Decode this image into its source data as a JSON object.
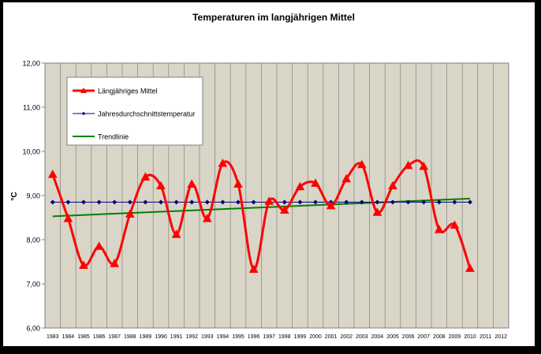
{
  "chart_data": {
    "type": "line",
    "title": "Temperaturen im langjährigen Mittel",
    "xlabel": "",
    "ylabel": "°C",
    "ylim": [
      6.0,
      12.0
    ],
    "xlim": [
      1983,
      2012
    ],
    "y_ticks": [
      "6,00",
      "7,00",
      "8,00",
      "9,00",
      "10,00",
      "11,00",
      "12,00"
    ],
    "x_ticks": [
      "1983",
      "1984",
      "1985",
      "1986",
      "1987",
      "1988",
      "1989",
      "1990",
      "1991",
      "1992",
      "1993",
      "1994",
      "1995",
      "1996",
      "1997",
      "1998",
      "1999",
      "2000",
      "2001",
      "2002",
      "2003",
      "2004",
      "2005",
      "2006",
      "2007",
      "2008",
      "2009",
      "2010",
      "2011",
      "2012"
    ],
    "grid": "vertical",
    "legend_position": "top-left",
    "plot_background": "#d9d5c7",
    "series": [
      {
        "name": "Längjähriges Mittel",
        "color": "#ff0000",
        "marker": "triangle",
        "smooth": true,
        "x": [
          1983,
          1984,
          1985,
          1986,
          1987,
          1988,
          1989,
          1990,
          1991,
          1992,
          1993,
          1994,
          1995,
          1996,
          1997,
          1998,
          1999,
          2000,
          2001,
          2002,
          2003,
          2004,
          2005,
          2006,
          2007,
          2008,
          2009,
          2010
        ],
        "y": [
          9.48,
          8.48,
          7.42,
          7.85,
          7.46,
          8.58,
          9.42,
          9.22,
          8.12,
          9.26,
          8.48,
          9.73,
          9.26,
          7.33,
          8.87,
          8.67,
          9.2,
          9.28,
          8.77,
          9.38,
          9.7,
          8.62,
          9.22,
          9.68,
          9.66,
          8.23,
          8.33,
          7.35
        ]
      },
      {
        "name": "Jahresdurchschnittstemperatur",
        "color": "#000080",
        "marker": "diamond",
        "smooth": false,
        "x": [
          1983,
          1984,
          1985,
          1986,
          1987,
          1988,
          1989,
          1990,
          1991,
          1992,
          1993,
          1994,
          1995,
          1996,
          1997,
          1998,
          1999,
          2000,
          2001,
          2002,
          2003,
          2004,
          2005,
          2006,
          2007,
          2008,
          2009,
          2010
        ],
        "y": [
          8.85,
          8.85,
          8.85,
          8.85,
          8.85,
          8.85,
          8.85,
          8.85,
          8.85,
          8.85,
          8.85,
          8.85,
          8.85,
          8.85,
          8.85,
          8.85,
          8.85,
          8.85,
          8.85,
          8.85,
          8.85,
          8.85,
          8.85,
          8.85,
          8.85,
          8.85,
          8.85,
          8.85
        ]
      },
      {
        "name": "Trendlinie",
        "color": "#008000",
        "marker": "none",
        "smooth": false,
        "x": [
          1983,
          2010
        ],
        "y": [
          8.53,
          8.93
        ]
      }
    ]
  }
}
